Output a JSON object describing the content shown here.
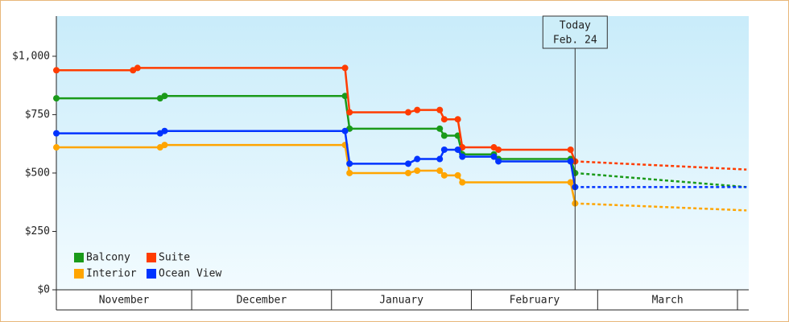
{
  "chart_data": {
    "type": "line",
    "categories": [
      "November",
      "December",
      "January",
      "February",
      "March"
    ],
    "xticks": [
      0,
      30,
      61,
      92,
      120,
      151
    ],
    "xlim": [
      0,
      153.5
    ],
    "ylim": [
      0,
      1172
    ],
    "yticks": [
      {
        "value": 0,
        "label": "$0"
      },
      {
        "value": 250,
        "label": "$250"
      },
      {
        "value": 500,
        "label": "$500"
      },
      {
        "value": 750,
        "label": "$750"
      },
      {
        "value": 1000,
        "label": "$1,000"
      }
    ],
    "legend": "lower left",
    "today": {
      "x": 115,
      "label": "Today",
      "date": "Feb. 24"
    },
    "series": [
      {
        "name": "Balcony",
        "color": "#1a9a1a",
        "x": [
          0,
          23,
          24,
          64,
          65,
          85,
          86,
          89,
          90,
          97,
          98,
          114,
          115
        ],
        "values": [
          820,
          820,
          830,
          830,
          690,
          690,
          660,
          660,
          580,
          580,
          560,
          560,
          500
        ],
        "forecast_x": [
          115,
          153
        ],
        "forecast_values": [
          500,
          440
        ]
      },
      {
        "name": "Suite",
        "color": "#ff3c00",
        "x": [
          0,
          17,
          18,
          64,
          65,
          78,
          80,
          85,
          86,
          89,
          90,
          97,
          98,
          114,
          115
        ],
        "values": [
          940,
          940,
          950,
          950,
          760,
          760,
          770,
          770,
          730,
          730,
          610,
          610,
          600,
          600,
          550
        ],
        "forecast_x": [
          115,
          153
        ],
        "forecast_values": [
          550,
          515
        ]
      },
      {
        "name": "Interior",
        "color": "#ffa500",
        "x": [
          0,
          23,
          24,
          64,
          65,
          78,
          80,
          85,
          86,
          89,
          90,
          114,
          115
        ],
        "values": [
          610,
          610,
          620,
          620,
          500,
          500,
          510,
          510,
          490,
          490,
          460,
          460,
          370
        ],
        "forecast_x": [
          115,
          153
        ],
        "forecast_values": [
          370,
          340
        ]
      },
      {
        "name": "Ocean View",
        "color": "#0033ff",
        "x": [
          0,
          23,
          24,
          64,
          65,
          78,
          80,
          85,
          86,
          89,
          90,
          97,
          98,
          114,
          115
        ],
        "values": [
          670,
          670,
          680,
          680,
          540,
          540,
          560,
          560,
          600,
          600,
          570,
          570,
          550,
          550,
          440
        ],
        "forecast_x": [
          115,
          153
        ],
        "forecast_values": [
          440,
          440
        ]
      }
    ]
  }
}
